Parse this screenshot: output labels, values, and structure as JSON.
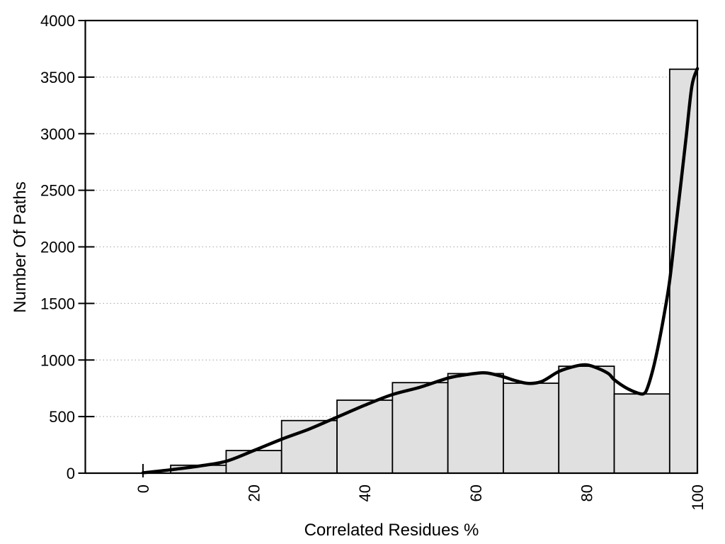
{
  "chart_data": {
    "type": "bar",
    "subtype": "histogram_with_smooth_curve",
    "title": "",
    "xlabel": "Correlated Residues %",
    "ylabel": "Number Of Paths",
    "xlim": [
      -10.4,
      100
    ],
    "ylim": [
      0,
      4000
    ],
    "x_ticks": [
      0,
      20,
      40,
      60,
      80,
      100
    ],
    "x_tick_labels": [
      "0",
      "20",
      "40",
      "60",
      "80",
      "100"
    ],
    "y_ticks": [
      0,
      500,
      1000,
      1500,
      2000,
      2500,
      3000,
      3500,
      4000
    ],
    "y_tick_labels": [
      "0",
      "500",
      "1000",
      "1500",
      "2000",
      "2500",
      "3000",
      "3500",
      "4000"
    ],
    "tick_label_rotation_deg": -90,
    "grid": "horizontal-dotted",
    "legend_position": "none",
    "bars": [
      {
        "x0": 5,
        "x1": 15,
        "value": 70
      },
      {
        "x0": 15,
        "x1": 25,
        "value": 200
      },
      {
        "x0": 25,
        "x1": 35,
        "value": 465
      },
      {
        "x0": 35,
        "x1": 45,
        "value": 645
      },
      {
        "x0": 45,
        "x1": 55,
        "value": 800
      },
      {
        "x0": 55,
        "x1": 65,
        "value": 880
      },
      {
        "x0": 65,
        "x1": 75,
        "value": 795
      },
      {
        "x0": 75,
        "x1": 85,
        "value": 945
      },
      {
        "x0": 85,
        "x1": 95,
        "value": 700
      },
      {
        "x0": 95,
        "x1": 100,
        "value": 3570
      }
    ],
    "series": [
      {
        "name": "smooth-curve",
        "points": [
          [
            0,
            3
          ],
          [
            5,
            30
          ],
          [
            10,
            62
          ],
          [
            15,
            105
          ],
          [
            20,
            200
          ],
          [
            25,
            300
          ],
          [
            30,
            390
          ],
          [
            35,
            495
          ],
          [
            40,
            600
          ],
          [
            45,
            695
          ],
          [
            50,
            760
          ],
          [
            55,
            840
          ],
          [
            58,
            868
          ],
          [
            60,
            882
          ],
          [
            62,
            886
          ],
          [
            65,
            852
          ],
          [
            67,
            820
          ],
          [
            69.5,
            793
          ],
          [
            72,
            812
          ],
          [
            75,
            898
          ],
          [
            78,
            946
          ],
          [
            80,
            957
          ],
          [
            82,
            928
          ],
          [
            84,
            878
          ],
          [
            85,
            826
          ],
          [
            87,
            758
          ],
          [
            89,
            712
          ],
          [
            90.3,
            702
          ],
          [
            91,
            755
          ],
          [
            92,
            920
          ],
          [
            93,
            1140
          ],
          [
            94,
            1400
          ],
          [
            95,
            1700
          ],
          [
            96,
            2130
          ],
          [
            97,
            2550
          ],
          [
            98,
            2980
          ],
          [
            99,
            3420
          ],
          [
            100,
            3575
          ]
        ]
      }
    ],
    "colors": {
      "background": "#ffffff",
      "bar_fill": "#e0e0e0",
      "bar_stroke": "#000000",
      "curve": "#000000",
      "grid": "#b3b3b3",
      "frame": "#000000",
      "text": "#000000"
    }
  }
}
